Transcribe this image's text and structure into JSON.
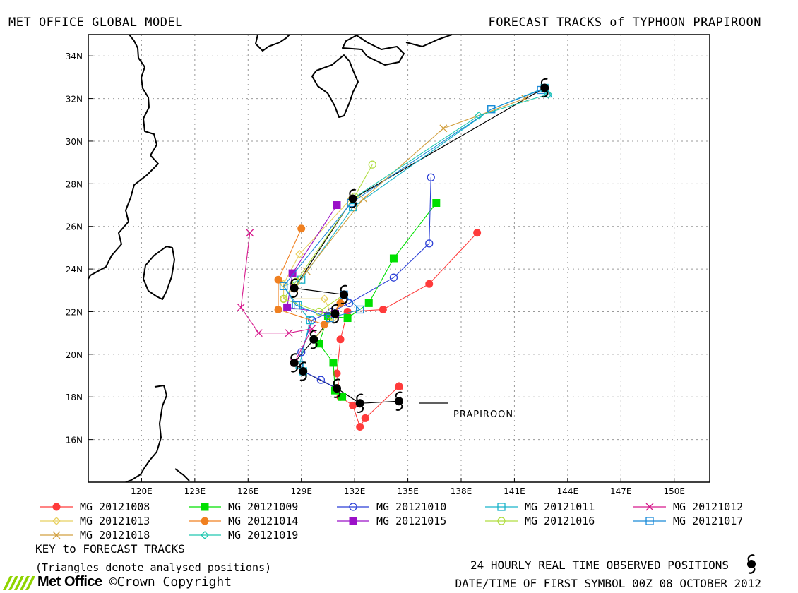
{
  "header": {
    "left": "MET OFFICE GLOBAL MODEL",
    "right": "FORECAST TRACKS of TYPHOON PRAPIROON"
  },
  "map": {
    "lat_ticks": [
      "34N",
      "32N",
      "30N",
      "28N",
      "26N",
      "24N",
      "22N",
      "20N",
      "18N",
      "16N"
    ],
    "lon_ticks": [
      "120E",
      "123E",
      "126E",
      "129E",
      "132E",
      "135E",
      "138E",
      "141E",
      "144E",
      "147E",
      "150E"
    ],
    "storm_label": "PRAPIROON"
  },
  "legend": [
    {
      "label": "MG 20121008",
      "color": "#ff3b3b",
      "marker": "circle-filled"
    },
    {
      "label": "MG 20121009",
      "color": "#00e000",
      "marker": "square-filled"
    },
    {
      "label": "MG 20121010",
      "color": "#2b3fd6",
      "marker": "circle-open"
    },
    {
      "label": "MG 20121011",
      "color": "#19b3c9",
      "marker": "square-open"
    },
    {
      "label": "MG 20121012",
      "color": "#d6198c",
      "marker": "x"
    },
    {
      "label": "MG 20121013",
      "color": "#e8d060",
      "marker": "diamond-open"
    },
    {
      "label": "MG 20121014",
      "color": "#f08020",
      "marker": "circle-filled"
    },
    {
      "label": "MG 20121015",
      "color": "#9b10c8",
      "marker": "square-filled"
    },
    {
      "label": "MG 20121016",
      "color": "#b0dd40",
      "marker": "circle-open"
    },
    {
      "label": "MG 20121017",
      "color": "#1a8ad8",
      "marker": "square-open"
    },
    {
      "label": "MG 20121018",
      "color": "#d2a040",
      "marker": "x"
    },
    {
      "label": "MG 20121019",
      "color": "#20c8b0",
      "marker": "diamond-open"
    }
  ],
  "footer": {
    "key": "KEY to FORECAST TRACKS",
    "triangles": "(Triangles denote analysed positions)",
    "observed": "24 HOURLY REAL TIME OBSERVED POSITIONS",
    "first_symbol": "DATE/TIME OF FIRST SYMBOL 00Z 08 OCTOBER 2012",
    "brand": "Met Office",
    "copyright": "©Crown Copyright"
  },
  "observed_track": [
    [
      134.5,
      17.8
    ],
    [
      132.3,
      17.7
    ],
    [
      131.0,
      18.4
    ],
    [
      129.1,
      19.2
    ],
    [
      128.6,
      19.6
    ],
    [
      129.7,
      20.7
    ],
    [
      130.9,
      21.9
    ],
    [
      131.4,
      22.8
    ],
    [
      128.6,
      23.1
    ],
    [
      131.9,
      27.3
    ],
    [
      142.7,
      32.5
    ]
  ],
  "tracks": [
    {
      "color": "#ff3b3b",
      "marker": "circle-filled",
      "points": [
        [
          134.5,
          18.5
        ],
        [
          132.6,
          17.0
        ],
        [
          132.3,
          16.6
        ],
        [
          131.9,
          17.6
        ],
        [
          131.2,
          18.0
        ],
        [
          131.0,
          19.1
        ],
        [
          131.2,
          20.7
        ],
        [
          131.6,
          22.0
        ],
        [
          133.6,
          22.1
        ],
        [
          136.2,
          23.3
        ],
        [
          138.9,
          25.7
        ]
      ]
    },
    {
      "color": "#00e000",
      "marker": "square-filled",
      "points": [
        [
          131.3,
          18.0
        ],
        [
          130.9,
          18.3
        ],
        [
          130.8,
          19.6
        ],
        [
          130.0,
          20.5
        ],
        [
          130.5,
          21.8
        ],
        [
          131.6,
          21.7
        ],
        [
          132.8,
          22.4
        ],
        [
          134.2,
          24.5
        ],
        [
          136.6,
          27.1
        ]
      ]
    },
    {
      "color": "#2b3fd6",
      "marker": "circle-open",
      "points": [
        [
          131.0,
          18.4
        ],
        [
          130.1,
          18.8
        ],
        [
          129.1,
          19.2
        ],
        [
          129.0,
          20.1
        ],
        [
          129.6,
          21.6
        ],
        [
          130.7,
          22.0
        ],
        [
          131.7,
          22.4
        ],
        [
          134.2,
          23.6
        ],
        [
          136.2,
          25.2
        ],
        [
          136.3,
          28.3
        ]
      ]
    },
    {
      "color": "#19b3c9",
      "marker": "square-open",
      "points": [
        [
          129.1,
          19.2
        ],
        [
          128.9,
          19.5
        ],
        [
          129.5,
          21.6
        ],
        [
          128.8,
          22.3
        ],
        [
          128.0,
          23.2
        ],
        [
          129.0,
          23.5
        ],
        [
          131.9,
          26.9
        ],
        [
          139.7,
          31.5
        ],
        [
          142.7,
          32.5
        ]
      ]
    },
    {
      "color": "#d6198c",
      "marker": "x",
      "points": [
        [
          128.6,
          19.6
        ],
        [
          129.6,
          21.2
        ],
        [
          128.3,
          21.0
        ],
        [
          126.6,
          21.0
        ],
        [
          125.6,
          22.2
        ],
        [
          126.1,
          25.7
        ]
      ]
    },
    {
      "color": "#e8d060",
      "marker": "diamond-open",
      "points": [
        [
          129.7,
          20.7
        ],
        [
          130.8,
          21.7
        ],
        [
          130.3,
          22.6
        ],
        [
          128.0,
          22.6
        ],
        [
          128.0,
          23.3
        ],
        [
          128.9,
          24.7
        ],
        [
          131.8,
          27.3
        ]
      ]
    },
    {
      "color": "#f08020",
      "marker": "circle-filled",
      "points": [
        [
          130.9,
          21.9
        ],
        [
          131.2,
          22.4
        ],
        [
          130.3,
          21.4
        ],
        [
          127.7,
          22.1
        ],
        [
          127.7,
          23.5
        ],
        [
          129.0,
          25.9
        ]
      ]
    },
    {
      "color": "#9b10c8",
      "marker": "square-filled",
      "points": [
        [
          130.9,
          21.9
        ],
        [
          128.2,
          22.2
        ],
        [
          128.5,
          23.8
        ],
        [
          131.0,
          27.0
        ]
      ]
    },
    {
      "color": "#b0dd40",
      "marker": "circle-open",
      "points": [
        [
          131.4,
          22.8
        ],
        [
          130.0,
          22.0
        ],
        [
          128.0,
          22.6
        ],
        [
          128.7,
          23.4
        ],
        [
          132.0,
          27.4
        ],
        [
          133.0,
          28.9
        ]
      ]
    },
    {
      "color": "#1a8ad8",
      "marker": "square-open",
      "points": [
        [
          131.4,
          22.8
        ],
        [
          132.3,
          22.1
        ],
        [
          130.6,
          21.7
        ],
        [
          128.7,
          22.3
        ],
        [
          128.0,
          23.2
        ],
        [
          131.8,
          27.1
        ],
        [
          139.7,
          31.5
        ],
        [
          142.5,
          32.4
        ]
      ]
    },
    {
      "color": "#d2a040",
      "marker": "x",
      "points": [
        [
          128.6,
          23.1
        ],
        [
          129.3,
          23.9
        ],
        [
          132.5,
          27.3
        ],
        [
          137.0,
          30.6
        ],
        [
          141.6,
          32.0
        ]
      ]
    },
    {
      "color": "#20c8b0",
      "marker": "diamond-open",
      "points": [
        [
          131.9,
          27.3
        ],
        [
          139.0,
          31.2
        ],
        [
          142.9,
          32.2
        ]
      ]
    }
  ],
  "analysed_positions": [
    {
      "color": "#ff3b3b",
      "point": [
        134.5,
        18.5
      ]
    },
    {
      "color": "#19b3c9",
      "point": [
        142.9,
        32.2
      ]
    }
  ]
}
